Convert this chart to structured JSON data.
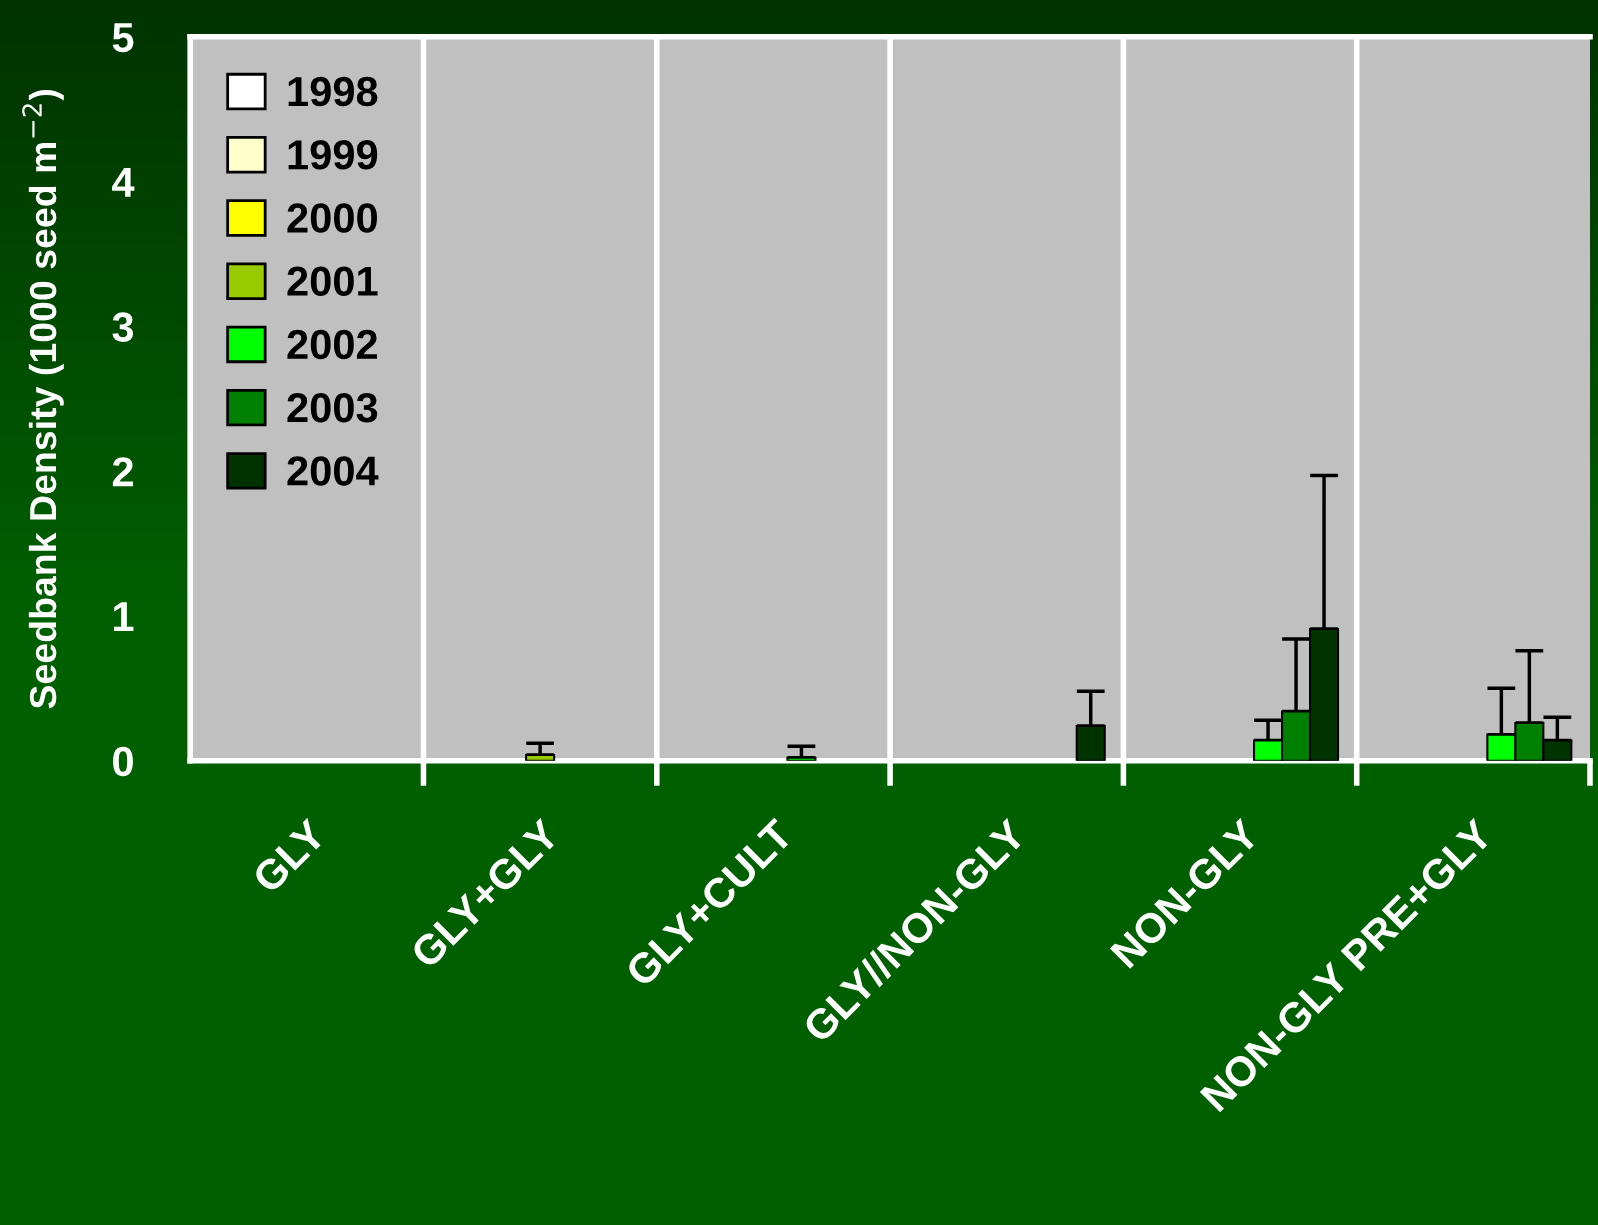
{
  "chart_data": {
    "type": "bar",
    "ylabel": "Seedbank Density (1000 seed m$^{−2}$)",
    "categories": [
      "GLY",
      "GLY+GLY",
      "GLY+CULT",
      "GLY//NON-GLY",
      "NON-GLY",
      "NON-GLY PRE+GLY"
    ],
    "series": [
      {
        "name": "1998",
        "color": "#ffffff",
        "values": [
          null,
          null,
          null,
          null,
          null,
          null
        ]
      },
      {
        "name": "1999",
        "color": "#ffffcc",
        "values": [
          null,
          null,
          null,
          null,
          null,
          null
        ]
      },
      {
        "name": "2000",
        "color": "#ffff00",
        "values": [
          null,
          null,
          null,
          null,
          null,
          null
        ]
      },
      {
        "name": "2001",
        "color": "#99cc00",
        "values": [
          null,
          0.04,
          null,
          null,
          null,
          null
        ],
        "errors": [
          null,
          0.08,
          null,
          null,
          null,
          null
        ]
      },
      {
        "name": "2002",
        "color": "#00ff00",
        "values": [
          null,
          null,
          0.02,
          null,
          0.14,
          0.18
        ],
        "errors": [
          null,
          null,
          0.08,
          null,
          0.14,
          0.32
        ]
      },
      {
        "name": "2003",
        "color": "#008000",
        "values": [
          null,
          null,
          null,
          null,
          0.34,
          0.26
        ],
        "errors": [
          null,
          null,
          null,
          null,
          0.5,
          0.5
        ]
      },
      {
        "name": "2004",
        "color": "#003300",
        "values": [
          null,
          null,
          null,
          0.24,
          0.91,
          0.14
        ],
        "errors": [
          null,
          null,
          null,
          0.24,
          1.06,
          0.16
        ]
      }
    ],
    "ylim": [
      0,
      5
    ],
    "yticks": [
      0,
      1,
      2,
      3,
      4,
      5
    ],
    "grid": "x",
    "legend": "top left"
  }
}
